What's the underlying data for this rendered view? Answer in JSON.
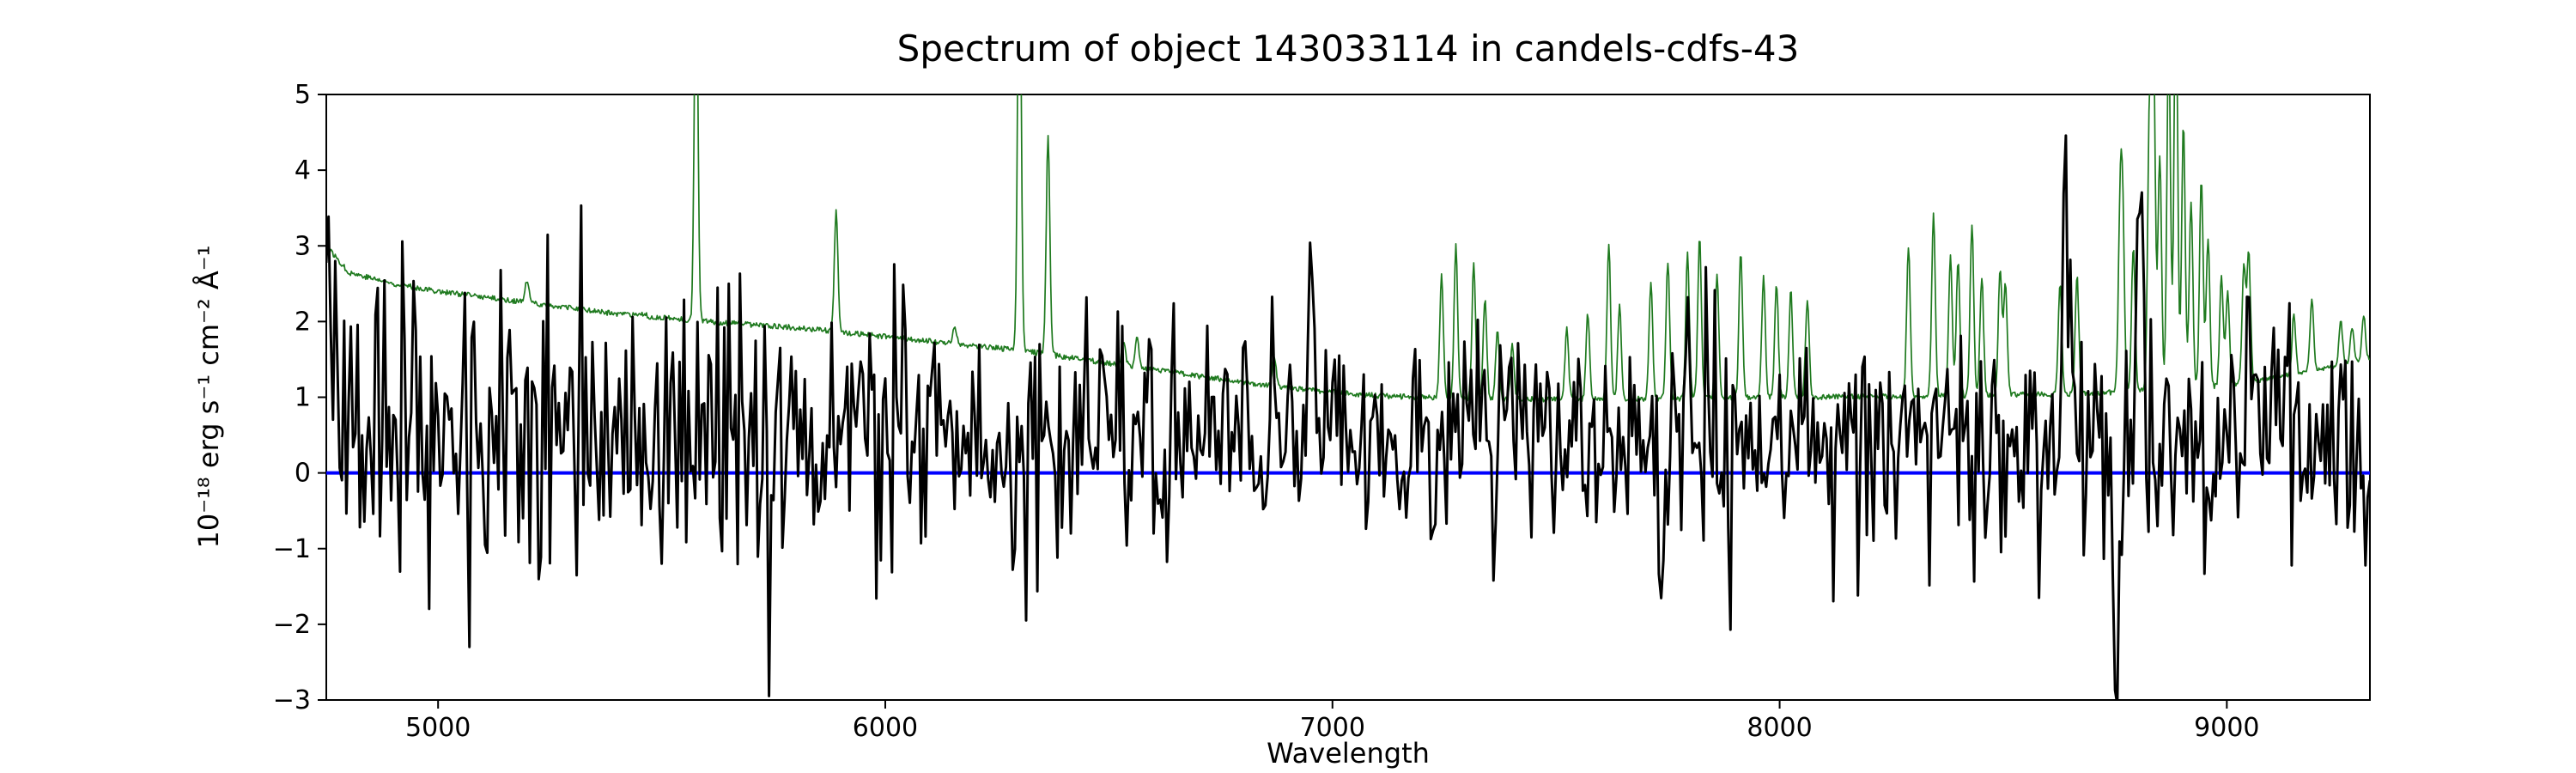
{
  "chart_data": {
    "type": "line",
    "title": "Spectrum of object 143033114 in candels-cdfs-43",
    "xlabel": "Wavelength",
    "ylabel": "10^-18 erg s^-1 cm^-2 A^-1",
    "ylabel_display": "10⁻¹⁸ erg s⁻¹ cm⁻² Å⁻¹",
    "xlim": [
      4750,
      9320
    ],
    "ylim": [
      -3,
      5
    ],
    "xticks": [
      5000,
      6000,
      7000,
      8000,
      9000
    ],
    "yticks": [
      -3,
      -2,
      -1,
      0,
      1,
      2,
      3,
      4,
      5
    ],
    "grid": false,
    "legend": null,
    "series": [
      {
        "name": "zero-flux",
        "label": "zero flux reference line",
        "type": "hline",
        "y": 0,
        "color": "#0000ff",
        "line_width": 4
      },
      {
        "name": "noise-spectrum",
        "label": "error / sky spectrum (green)",
        "type": "generated",
        "color": "#1f7a1f",
        "line_width": 1.7,
        "sample_step": 2,
        "seed": 77,
        "noise_amp": 0.035,
        "baseline": [
          [
            4750,
            3.0
          ],
          [
            4800,
            2.65
          ],
          [
            4900,
            2.5
          ],
          [
            5000,
            2.4
          ],
          [
            5200,
            2.25
          ],
          [
            5400,
            2.1
          ],
          [
            5600,
            2.0
          ],
          [
            5800,
            1.92
          ],
          [
            6000,
            1.8
          ],
          [
            6200,
            1.68
          ],
          [
            6300,
            1.62
          ],
          [
            6500,
            1.45
          ],
          [
            6700,
            1.28
          ],
          [
            6900,
            1.12
          ],
          [
            7100,
            1.02
          ],
          [
            7300,
            0.98
          ],
          [
            7600,
            0.97
          ],
          [
            8000,
            1.0
          ],
          [
            8400,
            1.02
          ],
          [
            8700,
            1.05
          ],
          [
            9000,
            1.15
          ],
          [
            9150,
            1.3
          ],
          [
            9320,
            1.5
          ]
        ],
        "spike_sigma": 4,
        "spikes": [
          [
            5199,
            2.55
          ],
          [
            5461,
            2.1
          ],
          [
            5577,
            7.0
          ],
          [
            5890,
            3.45
          ],
          [
            6155,
            1.95
          ],
          [
            6300,
            7.5
          ],
          [
            6364,
            4.45
          ],
          [
            6533,
            1.75
          ],
          [
            6563,
            1.8
          ],
          [
            6870,
            1.55
          ],
          [
            7244,
            2.6
          ],
          [
            7276,
            3.0
          ],
          [
            7316,
            2.75
          ],
          [
            7341,
            2.3
          ],
          [
            7369,
            1.9
          ],
          [
            7402,
            1.7
          ],
          [
            7524,
            1.9
          ],
          [
            7571,
            2.1
          ],
          [
            7618,
            3.0
          ],
          [
            7642,
            2.2
          ],
          [
            7712,
            2.5
          ],
          [
            7750,
            2.8
          ],
          [
            7794,
            2.9
          ],
          [
            7821,
            3.1
          ],
          [
            7860,
            2.6
          ],
          [
            7913,
            2.9
          ],
          [
            7964,
            2.6
          ],
          [
            7993,
            2.5
          ],
          [
            8025,
            2.4
          ],
          [
            8062,
            2.3
          ],
          [
            8288,
            3.0
          ],
          [
            8344,
            3.4
          ],
          [
            8382,
            2.9
          ],
          [
            8399,
            2.8
          ],
          [
            8430,
            3.3
          ],
          [
            8452,
            2.6
          ],
          [
            8493,
            2.7
          ],
          [
            8505,
            2.5
          ],
          [
            8627,
            2.5
          ],
          [
            8665,
            2.6
          ],
          [
            8761,
            3.1
          ],
          [
            8767,
            3.3
          ],
          [
            8791,
            3.0
          ],
          [
            8827,
            4.7
          ],
          [
            8836,
            5.6
          ],
          [
            8850,
            4.2
          ],
          [
            8870,
            5.8
          ],
          [
            8886,
            6.6
          ],
          [
            8903,
            4.6
          ],
          [
            8920,
            3.6
          ],
          [
            8943,
            3.9
          ],
          [
            8958,
            3.1
          ],
          [
            8988,
            2.6
          ],
          [
            9002,
            2.4
          ],
          [
            9038,
            2.7
          ],
          [
            9049,
            2.9
          ],
          [
            9150,
            2.1
          ],
          [
            9190,
            2.3
          ],
          [
            9255,
            2.0
          ],
          [
            9280,
            1.9
          ],
          [
            9306,
            2.1
          ]
        ]
      },
      {
        "name": "object-spectrum",
        "label": "observed object spectrum (black, noisy)",
        "type": "generated",
        "color": "#000000",
        "line_width": 3,
        "sample_step": 5,
        "seed": 143033114,
        "baseline": [
          [
            4750,
            0.55
          ],
          [
            5000,
            0.5
          ],
          [
            5500,
            0.45
          ],
          [
            6000,
            0.45
          ],
          [
            6600,
            0.55
          ],
          [
            7000,
            0.45
          ],
          [
            7500,
            0.4
          ],
          [
            8000,
            0.35
          ],
          [
            8600,
            0.4
          ],
          [
            9000,
            0.4
          ],
          [
            9320,
            0.3
          ]
        ],
        "noise_sigma": [
          [
            4750,
            1.05
          ],
          [
            5000,
            0.95
          ],
          [
            5600,
            0.9
          ],
          [
            6200,
            0.8
          ],
          [
            6800,
            0.72
          ],
          [
            7400,
            0.7
          ],
          [
            8000,
            0.75
          ],
          [
            8600,
            0.8
          ],
          [
            9000,
            0.85
          ],
          [
            9320,
            0.9
          ]
        ],
        "features": [
          [
            4756,
            4.2,
            5
          ],
          [
            6950,
            2.4,
            6
          ],
          [
            8640,
            3.5,
            6
          ],
          [
            8752,
            -2.9,
            9
          ],
          [
            8806,
            2.7,
            7
          ],
          [
            9052,
            2.2,
            6
          ]
        ]
      }
    ]
  }
}
